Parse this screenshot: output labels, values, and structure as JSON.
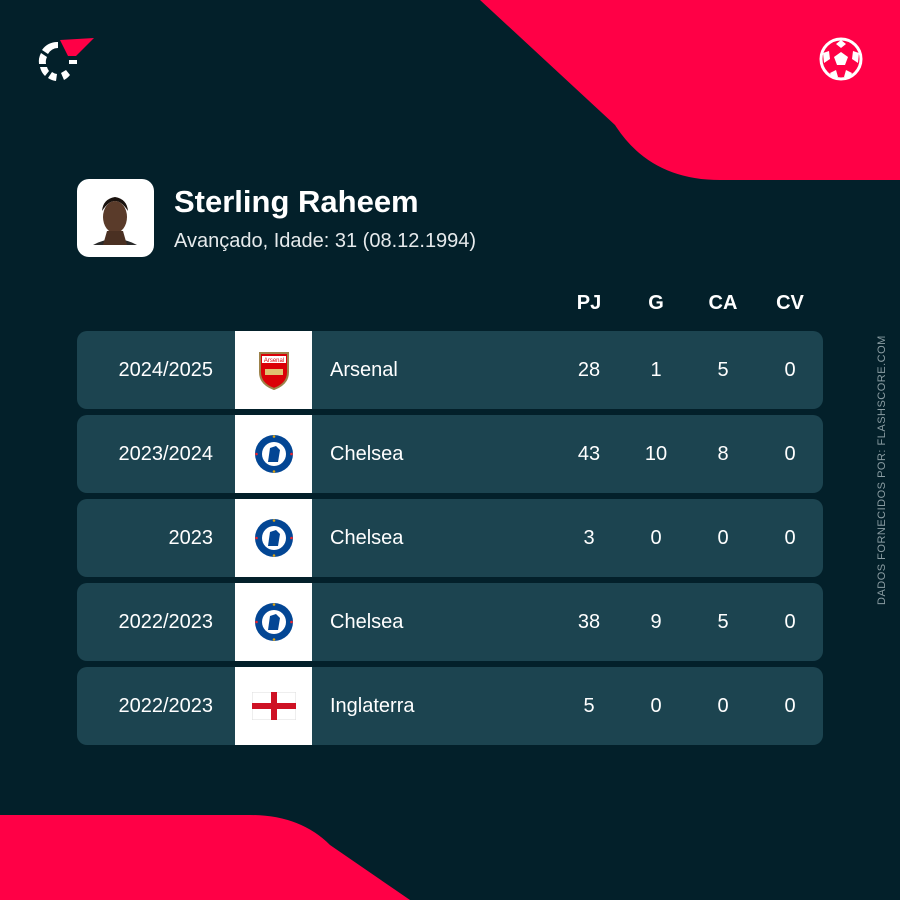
{
  "colors": {
    "background": "#03202a",
    "accent": "#ff0046",
    "row": "#1c4450"
  },
  "player": {
    "name": "Sterling Raheem",
    "subtitle": "Avançado, Idade: 31 (08.12.1994)"
  },
  "columns": [
    "PJ",
    "G",
    "CA",
    "CV"
  ],
  "rows": [
    {
      "season": "2024/2025",
      "team": "Arsenal",
      "crest": "arsenal-crest",
      "stats": [
        "28",
        "1",
        "5",
        "0"
      ]
    },
    {
      "season": "2023/2024",
      "team": "Chelsea",
      "crest": "chelsea-crest",
      "stats": [
        "43",
        "10",
        "8",
        "0"
      ]
    },
    {
      "season": "2023",
      "team": "Chelsea",
      "crest": "chelsea-crest",
      "stats": [
        "3",
        "0",
        "0",
        "0"
      ]
    },
    {
      "season": "2022/2023",
      "team": "Chelsea",
      "crest": "chelsea-crest",
      "stats": [
        "38",
        "9",
        "5",
        "0"
      ]
    },
    {
      "season": "2022/2023",
      "team": "Inglaterra",
      "crest": "england-flag",
      "stats": [
        "5",
        "0",
        "0",
        "0"
      ]
    }
  ],
  "credit": "DADOS FORNECIDOS POR: FLASHSCORE.COM"
}
